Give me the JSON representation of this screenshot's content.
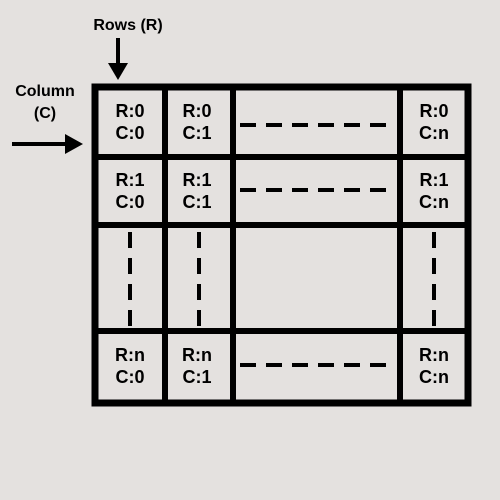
{
  "labels": {
    "rows": "Rows (R)",
    "column_line1": "Column",
    "column_line2": "(C)"
  },
  "cells": {
    "r0c0": {
      "r": "R:0",
      "c": "C:0"
    },
    "r0c1": {
      "r": "R:0",
      "c": "C:1"
    },
    "r0cn": {
      "r": "R:0",
      "c": "C:n"
    },
    "r1c0": {
      "r": "R:1",
      "c": "C:0"
    },
    "r1c1": {
      "r": "R:1",
      "c": "C:1"
    },
    "r1cn": {
      "r": "R:1",
      "c": "C:n"
    },
    "rnc0": {
      "r": "R:n",
      "c": "C:0"
    },
    "rnc1": {
      "r": "R:n",
      "c": "C:1"
    },
    "rncn": {
      "r": "R:n",
      "c": "C:n"
    }
  },
  "colors": {
    "background": "#e4e1df",
    "ink": "#000000"
  }
}
